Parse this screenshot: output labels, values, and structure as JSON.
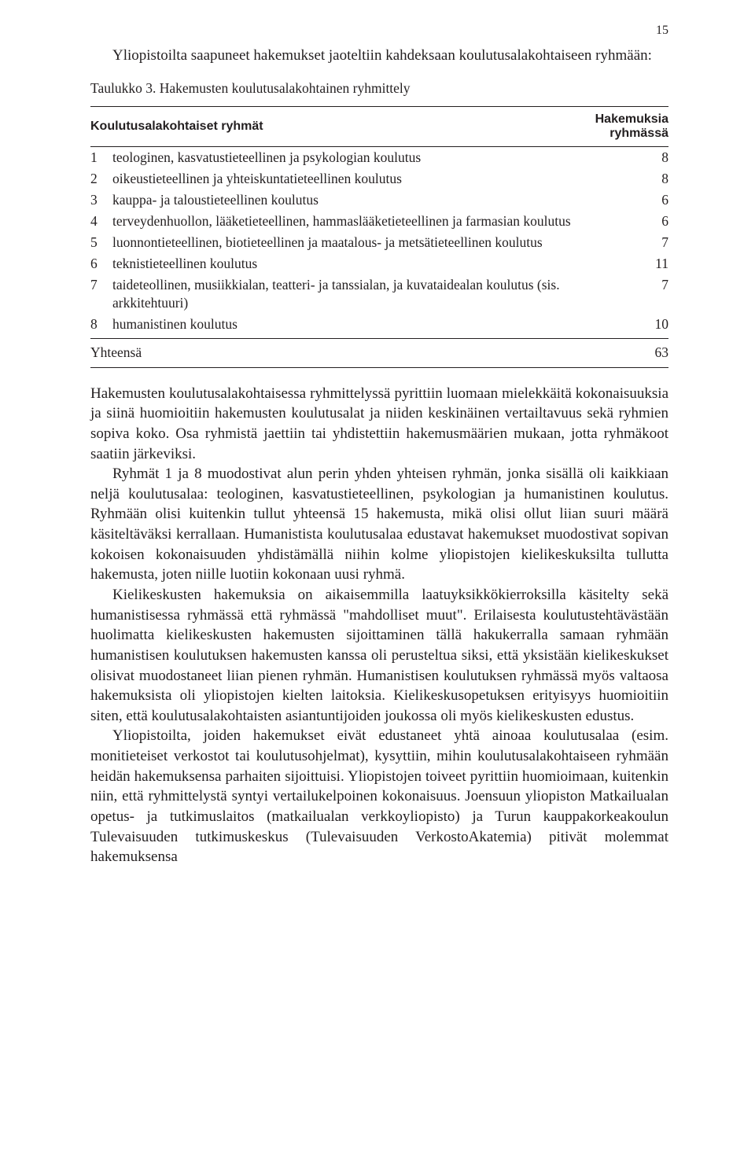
{
  "page_number": "15",
  "intro": "Yliopistoilta saapuneet hakemukset jaoteltiin kahdeksaan koulutusalakohtaiseen ryhmään:",
  "table": {
    "caption": "Taulukko 3. Hakemusten koulutusalakohtainen ryhmittely",
    "header_left": "Koulutusalakohtaiset ryhmät",
    "header_right": "Hakemuksia ryhmässä",
    "rows": [
      {
        "n": "1",
        "label": "teologinen, kasvatustieteellinen ja psykologian koulutus",
        "val": "8"
      },
      {
        "n": "2",
        "label": "oikeustieteellinen ja yhteiskuntatieteellinen koulutus",
        "val": "8"
      },
      {
        "n": "3",
        "label": "kauppa- ja taloustieteellinen koulutus",
        "val": "6"
      },
      {
        "n": "4",
        "label": "terveydenhuollon, lääketieteellinen, hammaslääketieteellinen ja farmasian koulutus",
        "val": "6"
      },
      {
        "n": "5",
        "label": "luonnontieteellinen, biotieteellinen ja maatalous- ja metsätieteellinen koulutus",
        "val": "7"
      },
      {
        "n": "6",
        "label": "teknistieteellinen koulutus",
        "val": "11"
      },
      {
        "n": "7",
        "label": "taideteollinen, musiikkialan, teatteri- ja tanssialan, ja kuvataidealan koulutus (sis. arkkitehtuuri)",
        "val": "7"
      },
      {
        "n": "8",
        "label": "humanistinen koulutus",
        "val": "10"
      }
    ],
    "total_label": "Yhteensä",
    "total_value": "63"
  },
  "paragraphs": [
    "Hakemusten koulutusalakohtaisessa ryhmittelyssä pyrittiin luomaan mielekkäitä kokonaisuuksia ja siinä huomioitiin hakemusten koulutusalat ja niiden keskinäinen vertailtavuus sekä ryhmien sopiva koko. Osa ryhmistä jaettiin tai yhdistettiin hakemusmäärien mukaan, jotta ryhmäkoot saatiin järkeviksi.",
    "Ryhmät 1 ja 8 muodostivat alun perin yhden yhteisen ryhmän, jonka sisällä oli kaikkiaan neljä koulutusalaa: teologinen, kasvatustieteellinen, psykologian ja humanistinen koulutus. Ryhmään olisi kuitenkin tullut yhteensä 15 hakemusta, mikä olisi ollut liian suuri määrä käsiteltäväksi kerrallaan. Humanistista koulutusalaa edustavat hakemukset muodostivat sopivan kokoisen kokonaisuuden yhdistämällä niihin kolme yliopistojen kielikeskuksilta tullutta hakemusta, joten niille luotiin kokonaan uusi ryhmä.",
    "Kielikeskusten hakemuksia on aikaisemmilla laatuyksikkökierroksilla käsitelty sekä humanistisessa ryhmässä että ryhmässä \"mahdolliset muut\". Erilaisesta koulutustehtävästään huolimatta kielikeskusten hakemusten sijoittaminen tällä hakukerralla samaan ryhmään humanistisen koulutuksen hakemusten kanssa oli perusteltua siksi, että yksistään kielikeskukset olisivat muodostaneet liian pienen ryhmän. Humanistisen koulutuksen ryhmässä myös valtaosa hakemuksista oli yliopistojen kielten laitoksia. Kielikeskusopetuksen erityisyys huomioitiin siten, että koulutusalakohtaisten asiantuntijoiden joukossa oli myös kielikeskusten edustus.",
    "Yliopistoilta, joiden hakemukset eivät edustaneet yhtä ainoaa koulutusalaa (esim. monitieteiset verkostot tai koulutusohjelmat), kysyttiin, mihin koulutusalakohtaiseen ryhmään heidän hakemuksensa parhaiten sijoittuisi. Yliopistojen toiveet pyrittiin huomioimaan, kuitenkin niin, että ryhmittelystä syntyi vertailukelpoinen kokonaisuus. Joensuun yliopiston Matkailualan opetus- ja tutkimuslaitos (matkailualan verkkoyliopisto) ja Turun kauppakorkeakoulun Tulevaisuuden tutkimuskeskus (Tulevaisuuden VerkostoAkatemia) pitivät molemmat hakemuksensa"
  ]
}
